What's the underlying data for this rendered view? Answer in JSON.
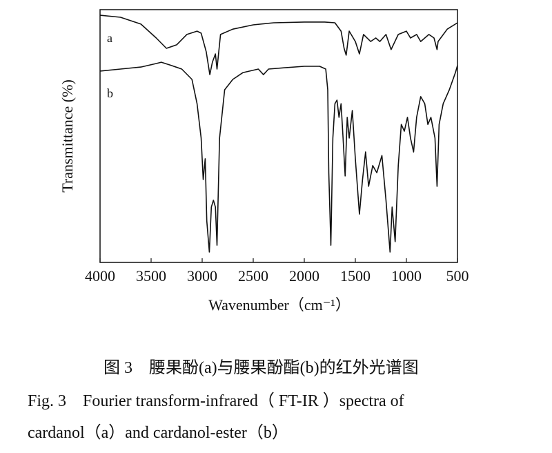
{
  "chart_data": {
    "type": "line",
    "xlabel": "Wavenumber（cm⁻¹）",
    "ylabel": "Transmittance (%)",
    "xlim": [
      4000,
      500
    ],
    "ylim": [
      0,
      100
    ],
    "xticks": [
      4000,
      3500,
      3000,
      2500,
      2000,
      1500,
      1000,
      500
    ],
    "series": [
      {
        "name": "a",
        "color": "#111111",
        "x": [
          4000,
          3800,
          3600,
          3450,
          3350,
          3250,
          3150,
          3050,
          3010,
          2960,
          2925,
          2900,
          2870,
          2855,
          2820,
          2700,
          2500,
          2300,
          2000,
          1800,
          1700,
          1640,
          1610,
          1590,
          1560,
          1500,
          1460,
          1420,
          1350,
          1300,
          1260,
          1200,
          1150,
          1080,
          1000,
          960,
          900,
          860,
          780,
          730,
          700,
          690,
          600,
          500
        ],
        "values": [
          97.8,
          97.0,
          94.3,
          88.8,
          84.7,
          86.1,
          90.2,
          91.5,
          90.7,
          83.3,
          74.3,
          79.2,
          82.5,
          76.5,
          90.2,
          92.3,
          94.0,
          94.8,
          95.1,
          95.1,
          94.8,
          91.5,
          84.7,
          82.0,
          91.5,
          87.4,
          82.5,
          90.2,
          87.4,
          88.8,
          87.4,
          90.2,
          84.2,
          90.2,
          91.5,
          88.8,
          90.2,
          87.4,
          90.2,
          88.8,
          84.2,
          87.4,
          92.3,
          94.8
        ]
      },
      {
        "name": "b",
        "color": "#111111",
        "x": [
          4000,
          3800,
          3600,
          3450,
          3400,
          3300,
          3200,
          3100,
          3050,
          3010,
          2990,
          2970,
          2955,
          2930,
          2910,
          2890,
          2870,
          2855,
          2830,
          2780,
          2700,
          2600,
          2450,
          2400,
          2350,
          2200,
          2000,
          1850,
          1790,
          1770,
          1760,
          1740,
          1720,
          1700,
          1680,
          1660,
          1640,
          1620,
          1600,
          1580,
          1560,
          1530,
          1500,
          1460,
          1430,
          1400,
          1370,
          1330,
          1290,
          1240,
          1200,
          1160,
          1140,
          1110,
          1080,
          1050,
          1020,
          990,
          960,
          930,
          900,
          860,
          820,
          790,
          760,
          720,
          700,
          680,
          640,
          580,
          520,
          500
        ],
        "values": [
          75.7,
          76.5,
          77.3,
          78.7,
          79.2,
          77.9,
          76.5,
          72.4,
          62.8,
          49.2,
          32.8,
          41.0,
          16.4,
          4.1,
          21.9,
          24.6,
          21.9,
          6.8,
          49.2,
          68.3,
          72.4,
          75.1,
          76.5,
          74.3,
          76.5,
          77.0,
          77.6,
          77.6,
          76.5,
          68.3,
          35.5,
          6.8,
          49.2,
          62.8,
          64.2,
          57.4,
          62.8,
          49.2,
          34.2,
          57.4,
          49.2,
          60.1,
          41.0,
          19.1,
          32.8,
          43.7,
          30.1,
          38.3,
          35.5,
          42.3,
          24.6,
          4.1,
          21.9,
          8.2,
          38.3,
          54.6,
          51.9,
          57.4,
          49.2,
          43.7,
          57.4,
          65.6,
          62.8,
          54.6,
          57.4,
          49.2,
          30.1,
          54.6,
          62.8,
          68.3,
          75.1,
          77.9
        ]
      }
    ],
    "caption_cn": "图 3　腰果酚(a)与腰果酚酯(b)的红外光谱图",
    "caption_en": [
      "Fig. 3　Fourier transform-infrared（ FT-IR ）spectra of",
      "cardanol（a）and cardanol-ester（b）"
    ]
  }
}
